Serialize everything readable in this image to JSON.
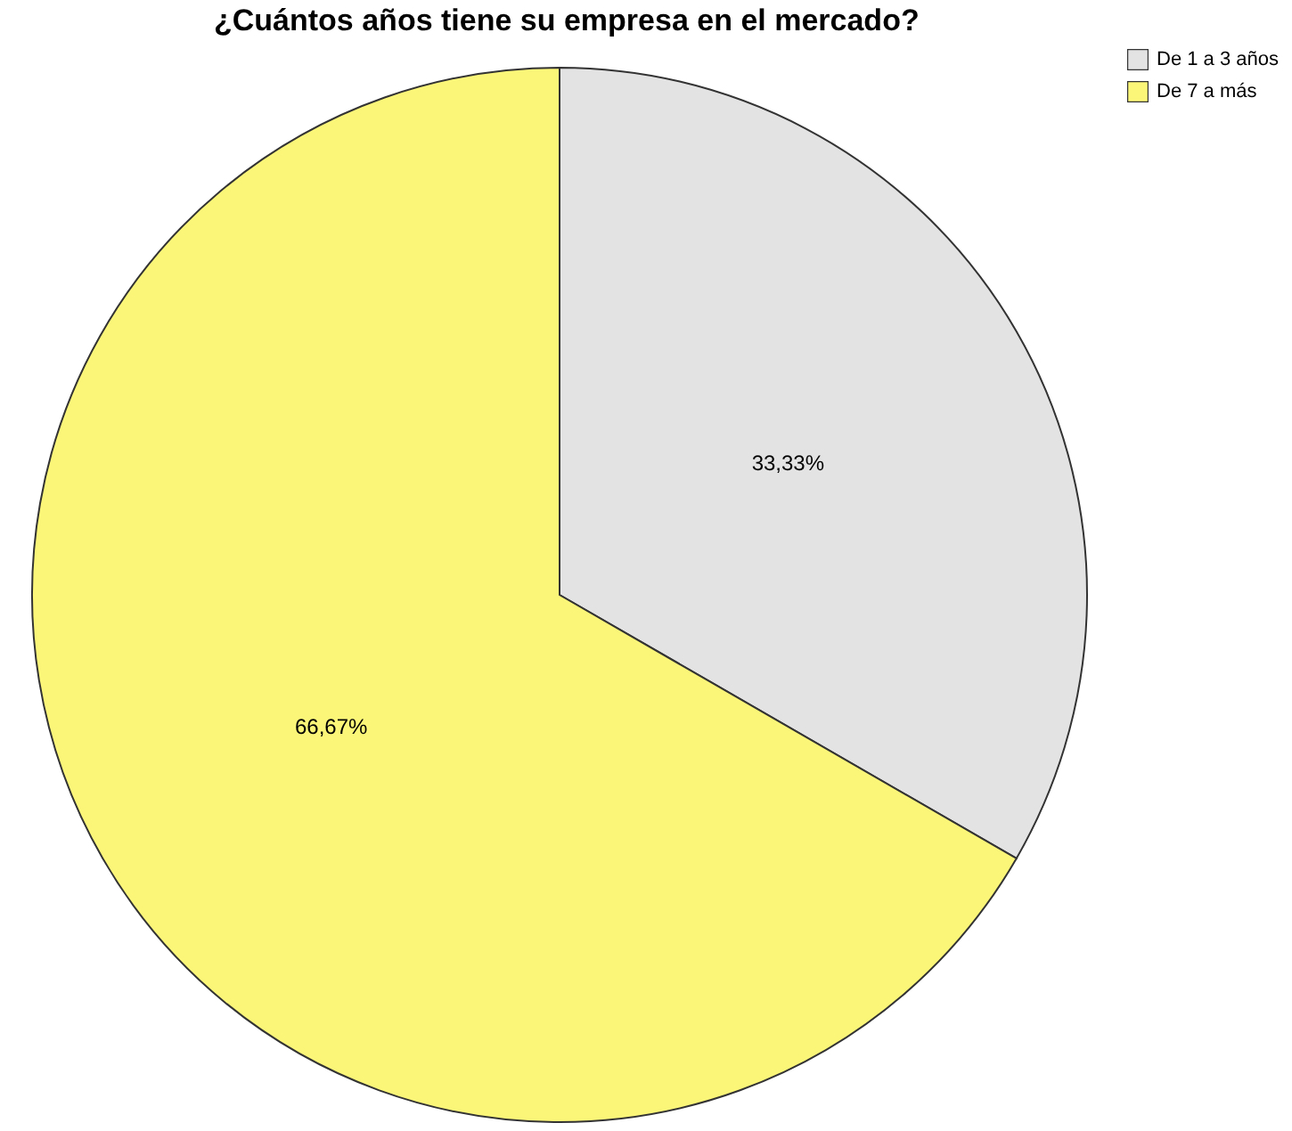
{
  "chart_data": {
    "type": "pie",
    "title": "¿Cuántos años tiene su empresa en el mercado?",
    "categories": [
      "De 1 a 3 años",
      "De 7 a más"
    ],
    "values": [
      33.33,
      66.67
    ],
    "colors": [
      "#e3e3e3",
      "#fbf578"
    ],
    "value_labels": [
      "33,33%",
      "66,67%"
    ],
    "legend": "top right"
  }
}
